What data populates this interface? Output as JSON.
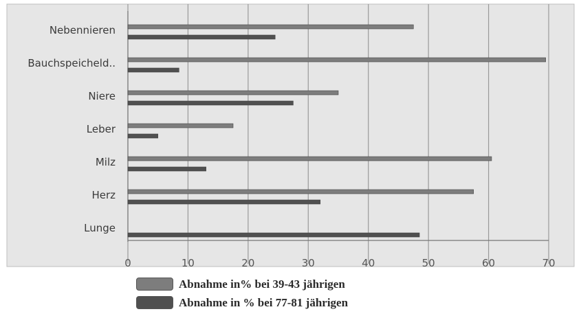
{
  "chart_data": {
    "type": "bar",
    "orientation": "horizontal",
    "categories": [
      "Nebennieren",
      "Bauchspeicheld..",
      "Niere",
      "Leber",
      "Milz",
      "Herz",
      "Lunge"
    ],
    "series": [
      {
        "name": "Abnahme in% bei 39-43 jährigen",
        "color": "#7d7d7d",
        "values": [
          47.5,
          69.5,
          35,
          17.5,
          60.5,
          57.5,
          null
        ]
      },
      {
        "name": "Abnahme in % bei 77-81 jährigen",
        "color": "#505050",
        "values": [
          24.5,
          8.5,
          27.5,
          5,
          13,
          32,
          48.5
        ]
      }
    ],
    "xlim": [
      0,
      70
    ],
    "xticks": [
      0,
      10,
      20,
      30,
      40,
      50,
      60,
      70
    ],
    "grid": true,
    "legend_position": "bottom"
  }
}
